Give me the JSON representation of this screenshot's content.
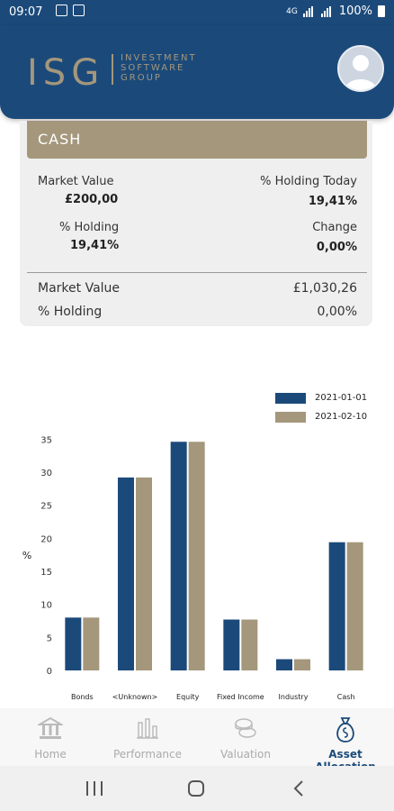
{
  "status_bar": {
    "time": "09:07",
    "network": "4G",
    "battery": "100%"
  },
  "header": {
    "logo_main": "ISG",
    "logo_sub_1": "INVESTMENT",
    "logo_sub_2": "SOFTWARE",
    "logo_sub_3": "GROUP"
  },
  "card": {
    "title": "CASH",
    "market_value_label": "Market Value",
    "market_value": "£200,00",
    "holding_today_label": "% Holding Today",
    "holding_today": "19,41%",
    "holding_label": "% Holding",
    "holding": "19,41%",
    "change_label": "Change",
    "change": "0,00%",
    "total_market_value_label": "Market Value",
    "total_market_value": "£1,030,26",
    "total_holding_label": "% Holding",
    "total_holding": "0,00%"
  },
  "chart_data": {
    "type": "bar",
    "categories": [
      "Bonds",
      "<Unknown>",
      "Equity",
      "Fixed Income",
      "Industry",
      "Cash"
    ],
    "series": [
      {
        "name": "2021-01-01",
        "color": "#1b4a7a",
        "values": [
          8.0,
          29.2,
          34.6,
          7.7,
          1.7,
          19.4
        ]
      },
      {
        "name": "2021-02-10",
        "color": "#a4977c",
        "values": [
          8.0,
          29.2,
          34.6,
          7.7,
          1.7,
          19.4
        ]
      }
    ],
    "ylabel": "%",
    "yticks": [
      0,
      5,
      10,
      15,
      20,
      25,
      30,
      35
    ],
    "ylim": [
      0,
      36
    ],
    "legend_position": "top-right"
  },
  "bottom_nav": [
    {
      "label": "Home",
      "icon": "bank-icon",
      "active": false
    },
    {
      "label": "Performance",
      "icon": "bar-chart-icon",
      "active": false
    },
    {
      "label": "Valuation",
      "icon": "coins-icon",
      "active": false
    },
    {
      "label": "Asset Allocation",
      "icon": "money-bag-icon",
      "active": true
    }
  ],
  "colors": {
    "primary": "#1b4a7a",
    "accent": "#a4977c"
  }
}
